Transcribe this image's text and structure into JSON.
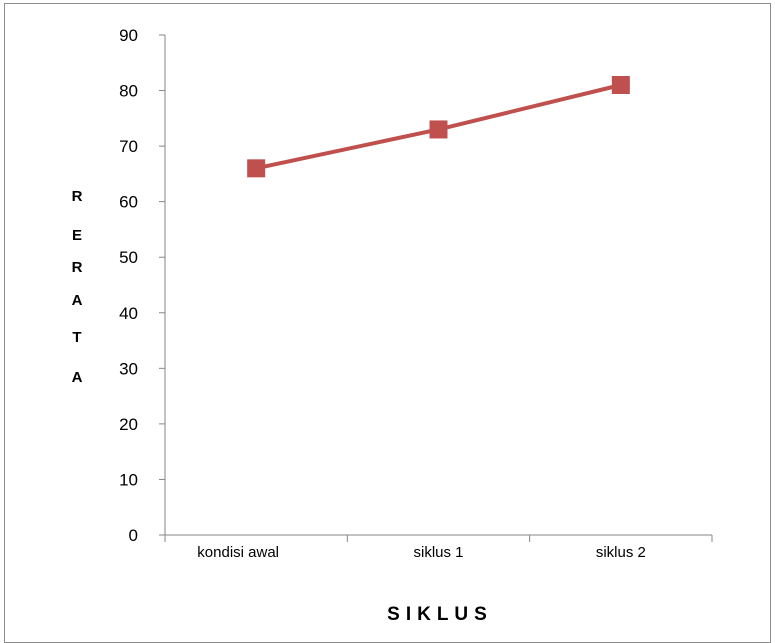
{
  "chart_data": {
    "type": "line",
    "categories": [
      "kondisi awal",
      "siklus 1",
      "siklus 2"
    ],
    "series": [
      {
        "values": [
          66,
          73,
          81
        ],
        "color": "#c0504d"
      }
    ],
    "xlabel": "SIKLUS",
    "ylabel": [
      "R",
      "E",
      "R",
      "A",
      "T",
      "A"
    ],
    "ylim": [
      0,
      90
    ],
    "yticks": [
      "0",
      "10",
      "20",
      "30",
      "40",
      "50",
      "60",
      "70",
      "80",
      "90"
    ],
    "grid": false,
    "legend": "none"
  }
}
